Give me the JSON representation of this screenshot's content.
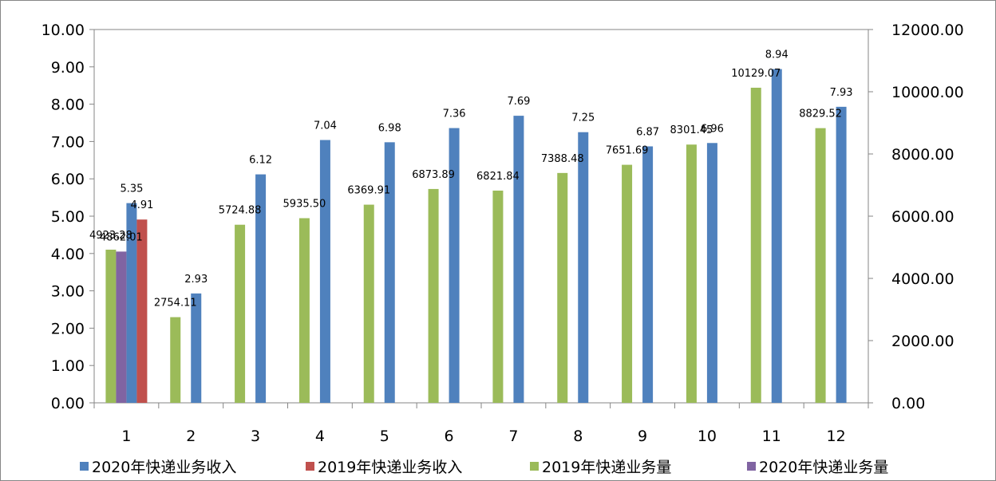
{
  "chart_data": {
    "type": "bar",
    "categories": [
      "1",
      "2",
      "3",
      "4",
      "5",
      "6",
      "7",
      "8",
      "9",
      "10",
      "11",
      "12"
    ],
    "y_left": {
      "ylim": [
        0,
        10
      ],
      "ticks": [
        "0.00",
        "1.00",
        "2.00",
        "3.00",
        "4.00",
        "5.00",
        "6.00",
        "7.00",
        "8.00",
        "9.00",
        "10.00"
      ]
    },
    "y_right": {
      "ylim": [
        0,
        12000
      ],
      "ticks": [
        "0.00",
        "2000.00",
        "4000.00",
        "6000.00",
        "8000.00",
        "10000.00",
        "12000.00"
      ]
    },
    "series": [
      {
        "name": "2020年快递业务收入",
        "color": "#4F81BD",
        "axis": "left",
        "values": [
          5.35,
          2.93,
          6.12,
          7.04,
          6.98,
          7.36,
          7.69,
          7.25,
          6.87,
          6.96,
          8.94,
          7.93
        ],
        "labels": [
          "5.35",
          "2.93",
          "6.12",
          "7.04",
          "6.98",
          "7.36",
          "7.69",
          "7.25",
          "6.87",
          "6.96",
          "8.94",
          "7.93"
        ]
      },
      {
        "name": "2019年快递业务收入",
        "color": "#C0504D",
        "axis": "left",
        "values": [
          4.91,
          null,
          null,
          null,
          null,
          null,
          null,
          null,
          null,
          null,
          null,
          null
        ],
        "labels": [
          "4.91",
          null,
          null,
          null,
          null,
          null,
          null,
          null,
          null,
          null,
          null,
          null
        ]
      },
      {
        "name": "2019年快递业务量",
        "color": "#9BBB59",
        "axis": "right",
        "values": [
          4923.28,
          2754.11,
          5724.88,
          5935.5,
          6369.91,
          6873.89,
          6821.84,
          7388.48,
          7651.69,
          8301.45,
          10129.07,
          8829.52
        ],
        "labels": [
          "4923.28",
          "2754.11",
          "5724.88",
          "5935.50",
          "6369.91",
          "6873.89",
          "6821.84",
          "7388.48",
          "7651.69",
          "8301.45",
          "10129.07",
          "8829.52"
        ]
      },
      {
        "name": "2020年快递业务量",
        "color": "#8064A2",
        "axis": "right",
        "values": [
          4862.01,
          null,
          null,
          null,
          null,
          null,
          null,
          null,
          null,
          null,
          null,
          null
        ],
        "labels": [
          "4862.01",
          null,
          null,
          null,
          null,
          null,
          null,
          null,
          null,
          null,
          null,
          null
        ]
      }
    ],
    "grid": false,
    "legend_position": "bottom"
  }
}
